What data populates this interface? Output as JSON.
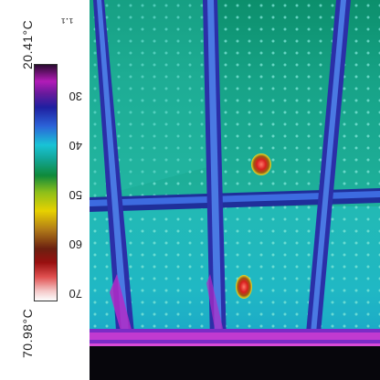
{
  "scale": {
    "max_label": "70.98°C",
    "min_label": "20.41°C",
    "emissivity_label": "¹·¹",
    "ticks": [
      "70",
      "60",
      "50",
      "40",
      "30"
    ]
  },
  "image": {
    "subject": "thermal image of ceiling tiles",
    "hotspots": 2
  },
  "palette": {
    "tile_light": "#2cc4b6",
    "tile_dark": "#0a8c7a",
    "frame": "#2b55d8",
    "hot": "#e23a2a"
  }
}
